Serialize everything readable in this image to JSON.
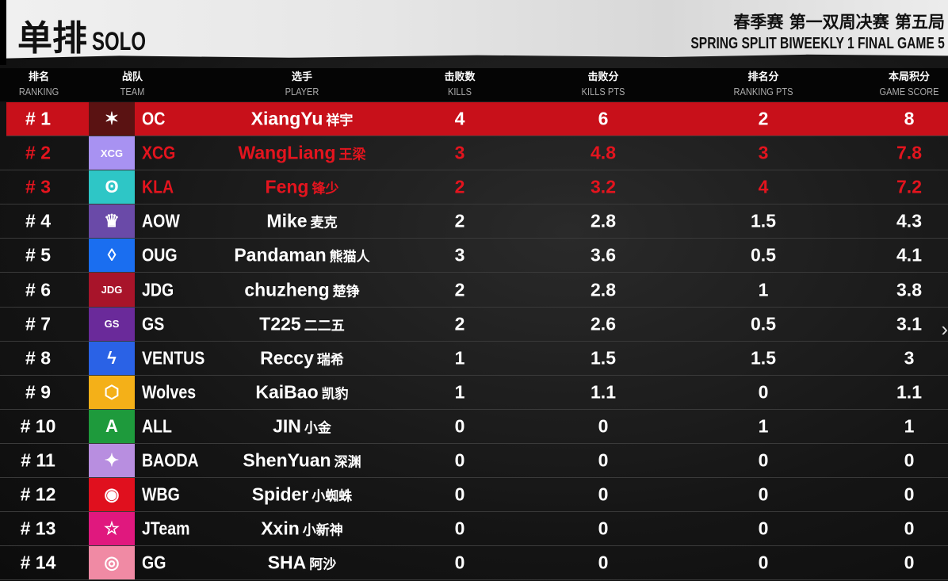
{
  "header": {
    "title_cn": "单排",
    "title_en": "SOLO",
    "event_cn": "春季赛 第一双周决赛 第五局",
    "event_en": "SPRING SPLIT BIWEEKLY 1 FINAL GAME 5"
  },
  "columns": [
    {
      "cn": "排名",
      "en": "RANKING"
    },
    {
      "cn": "战队",
      "en": "TEAM"
    },
    {
      "cn": "选手",
      "en": "PLAYER"
    },
    {
      "cn": "击败数",
      "en": "KILLS"
    },
    {
      "cn": "击败分",
      "en": "KILLS PTS"
    },
    {
      "cn": "排名分",
      "en": "RANKING PTS"
    },
    {
      "cn": "本局积分",
      "en": "GAME SCORE"
    }
  ],
  "rows": [
    {
      "rank": "# 1",
      "team": "OC",
      "player": "XiangYu",
      "player_cn": "祥宇",
      "kills": "4",
      "kills_pts": "6",
      "ranking_pts": "2",
      "score": "8",
      "logo_color": "#5a1212",
      "icon": "oc-logo-icon",
      "glyph": "✶"
    },
    {
      "rank": "# 2",
      "team": "XCG",
      "player": "WangLiang",
      "player_cn": "王梁",
      "kills": "3",
      "kills_pts": "4.8",
      "ranking_pts": "3",
      "score": "7.8",
      "logo_color": "#a892f2",
      "icon": "xcg-logo-icon",
      "glyph": "XCG"
    },
    {
      "rank": "# 3",
      "team": "KLA",
      "player": "Feng",
      "player_cn": "锋少",
      "kills": "2",
      "kills_pts": "3.2",
      "ranking_pts": "4",
      "score": "7.2",
      "logo_color": "#2ec6c6",
      "icon": "kla-logo-icon",
      "glyph": "ʘ"
    },
    {
      "rank": "# 4",
      "team": "AOW",
      "player": "Mike",
      "player_cn": "麦克",
      "kills": "2",
      "kills_pts": "2.8",
      "ranking_pts": "1.5",
      "score": "4.3",
      "logo_color": "#6a4aa8",
      "icon": "aow-logo-icon",
      "glyph": "♛"
    },
    {
      "rank": "# 5",
      "team": "OUG",
      "player": "Pandaman",
      "player_cn": "熊猫人",
      "kills": "3",
      "kills_pts": "3.6",
      "ranking_pts": "0.5",
      "score": "4.1",
      "logo_color": "#1a6ef0",
      "icon": "oug-logo-icon",
      "glyph": "◊"
    },
    {
      "rank": "# 6",
      "team": "JDG",
      "player": "chuzheng",
      "player_cn": "楚铮",
      "kills": "2",
      "kills_pts": "2.8",
      "ranking_pts": "1",
      "score": "3.8",
      "logo_color": "#a8142a",
      "icon": "jdg-logo-icon",
      "glyph": "JDG"
    },
    {
      "rank": "# 7",
      "team": "GS",
      "player": "T225",
      "player_cn": "二二五",
      "kills": "2",
      "kills_pts": "2.6",
      "ranking_pts": "0.5",
      "score": "3.1",
      "logo_color": "#6a2a9a",
      "icon": "gs-logo-icon",
      "glyph": "GS"
    },
    {
      "rank": "# 8",
      "team": "VENTUS",
      "player": "Reccy",
      "player_cn": "瑞希",
      "kills": "1",
      "kills_pts": "1.5",
      "ranking_pts": "1.5",
      "score": "3",
      "logo_color": "#2a62e6",
      "icon": "ventus-logo-icon",
      "glyph": "ϟ"
    },
    {
      "rank": "# 9",
      "team": "Wolves",
      "player": "KaiBao",
      "player_cn": "凯豹",
      "kills": "1",
      "kills_pts": "1.1",
      "ranking_pts": "0",
      "score": "1.1",
      "logo_color": "#f4b018",
      "icon": "wolves-logo-icon",
      "glyph": "⬡"
    },
    {
      "rank": "# 10",
      "team": "ALL",
      "player": "JIN",
      "player_cn": "小金",
      "kills": "0",
      "kills_pts": "0",
      "ranking_pts": "1",
      "score": "1",
      "logo_color": "#1e9a3c",
      "icon": "all-logo-icon",
      "glyph": "A"
    },
    {
      "rank": "# 11",
      "team": "BAODA",
      "player": "ShenYuan",
      "player_cn": "深渊",
      "kills": "0",
      "kills_pts": "0",
      "ranking_pts": "0",
      "score": "0",
      "logo_color": "#b88ee0",
      "icon": "baoda-logo-icon",
      "glyph": "✦"
    },
    {
      "rank": "# 12",
      "team": "WBG",
      "player": "Spider",
      "player_cn": "小蜘蛛",
      "kills": "0",
      "kills_pts": "0",
      "ranking_pts": "0",
      "score": "0",
      "logo_color": "#e0101e",
      "icon": "wbg-logo-icon",
      "glyph": "◉"
    },
    {
      "rank": "# 13",
      "team": "JTeam",
      "player": "Xxin",
      "player_cn": "小新神",
      "kills": "0",
      "kills_pts": "0",
      "ranking_pts": "0",
      "score": "0",
      "logo_color": "#e0187e",
      "icon": "jteam-logo-icon",
      "glyph": "☆"
    },
    {
      "rank": "# 14",
      "team": "GG",
      "player": "SHA",
      "player_cn": "阿沙",
      "kills": "0",
      "kills_pts": "0",
      "ranking_pts": "0",
      "score": "0",
      "logo_color": "#f08aa4",
      "icon": "gg-logo-icon",
      "glyph": "◎"
    }
  ],
  "colors": {
    "highlight": "#c8101a",
    "top3_text": "#e3141e"
  }
}
